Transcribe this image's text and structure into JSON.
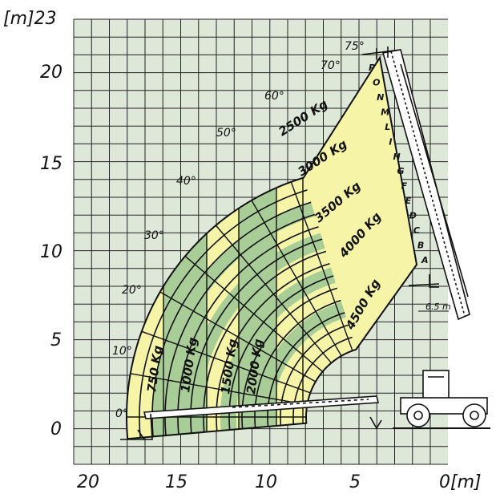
{
  "axes": {
    "y_unit": "[m]23",
    "x_unit": "0[m]",
    "y_ticks": [
      "20",
      "15",
      "10",
      "5",
      "0"
    ],
    "x_ticks": [
      "20",
      "15",
      "10",
      "5"
    ]
  },
  "angles": [
    "75°",
    "70°",
    "60°",
    "50°",
    "40°",
    "30°",
    "20°",
    "10°",
    "0°"
  ],
  "load_zones": [
    {
      "label": "750 Kg",
      "color": "#f6f4a6"
    },
    {
      "label": "1000 Kg",
      "color": "#a9cd97"
    },
    {
      "label": "1500 Kg",
      "color": "#f6f4a6"
    },
    {
      "label": "2000 Kg",
      "color": "#a9cd97"
    },
    {
      "label": "2500 Kg",
      "color": "#f6f4a6"
    },
    {
      "label": "3000 Kg",
      "color": "#a9cd97"
    },
    {
      "label": "3500 Kg",
      "color": "#f6f4a6"
    },
    {
      "label": "4000 Kg",
      "color": "#a9cd97"
    },
    {
      "label": "4500 Kg",
      "color": "#f6f4a6"
    }
  ],
  "extension_letters": [
    "P",
    "O",
    "N",
    "M",
    "L",
    "I",
    "H",
    "G",
    "F",
    "E",
    "D",
    "C",
    "B",
    "A"
  ],
  "dimension_label": "6.5 m",
  "colors": {
    "grid_bg": "#dde8d9",
    "grid_line": "#222222",
    "yellow": "#f6f4a6",
    "green": "#a9cd97"
  }
}
